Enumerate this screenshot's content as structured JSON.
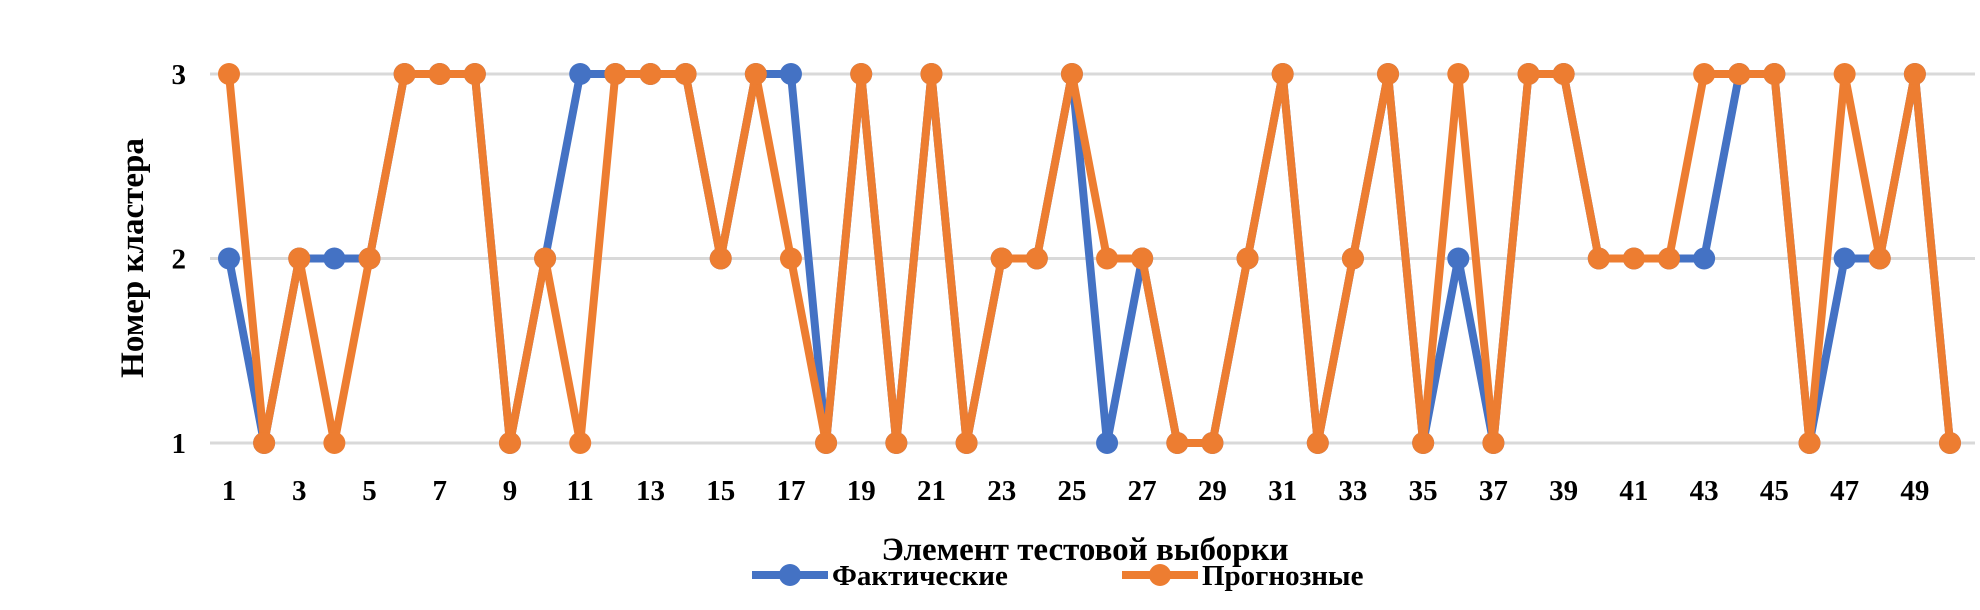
{
  "chart_data": {
    "type": "line",
    "title": "",
    "xlabel": "Элемент тестовой выборки",
    "ylabel": "Номер кластера",
    "x": [
      1,
      2,
      3,
      4,
      5,
      6,
      7,
      8,
      9,
      10,
      11,
      12,
      13,
      14,
      15,
      16,
      17,
      18,
      19,
      20,
      21,
      22,
      23,
      24,
      25,
      26,
      27,
      28,
      29,
      30,
      31,
      32,
      33,
      34,
      35,
      36,
      37,
      38,
      39,
      40,
      41,
      42,
      43,
      44,
      45,
      46,
      47,
      48,
      49,
      50
    ],
    "x_tick_labels": [
      "1",
      "3",
      "5",
      "7",
      "9",
      "11",
      "13",
      "15",
      "17",
      "19",
      "21",
      "23",
      "25",
      "27",
      "29",
      "31",
      "33",
      "35",
      "37",
      "39",
      "41",
      "43",
      "45",
      "47",
      "49"
    ],
    "y_tick_labels": [
      "1",
      "2",
      "3"
    ],
    "ylim": [
      1,
      3
    ],
    "grid": "horizontal",
    "legend_position": "bottom",
    "series": [
      {
        "name": "Фактические",
        "color": "#4472C4",
        "values": [
          2,
          1,
          2,
          2,
          2,
          3,
          3,
          3,
          1,
          2,
          3,
          3,
          3,
          3,
          2,
          3,
          3,
          1,
          3,
          1,
          3,
          1,
          2,
          2,
          3,
          1,
          2,
          1,
          1,
          2,
          3,
          1,
          2,
          3,
          1,
          2,
          1,
          3,
          3,
          2,
          2,
          2,
          2,
          3,
          3,
          1,
          2,
          2,
          3,
          1
        ]
      },
      {
        "name": "Прогнозные",
        "color": "#ED7D31",
        "values": [
          3,
          1,
          2,
          1,
          2,
          3,
          3,
          3,
          1,
          2,
          1,
          3,
          3,
          3,
          2,
          3,
          2,
          1,
          3,
          1,
          3,
          1,
          2,
          2,
          3,
          2,
          2,
          1,
          1,
          2,
          3,
          1,
          2,
          3,
          1,
          3,
          1,
          3,
          3,
          2,
          2,
          2,
          3,
          3,
          3,
          1,
          3,
          2,
          3,
          1
        ]
      }
    ]
  }
}
